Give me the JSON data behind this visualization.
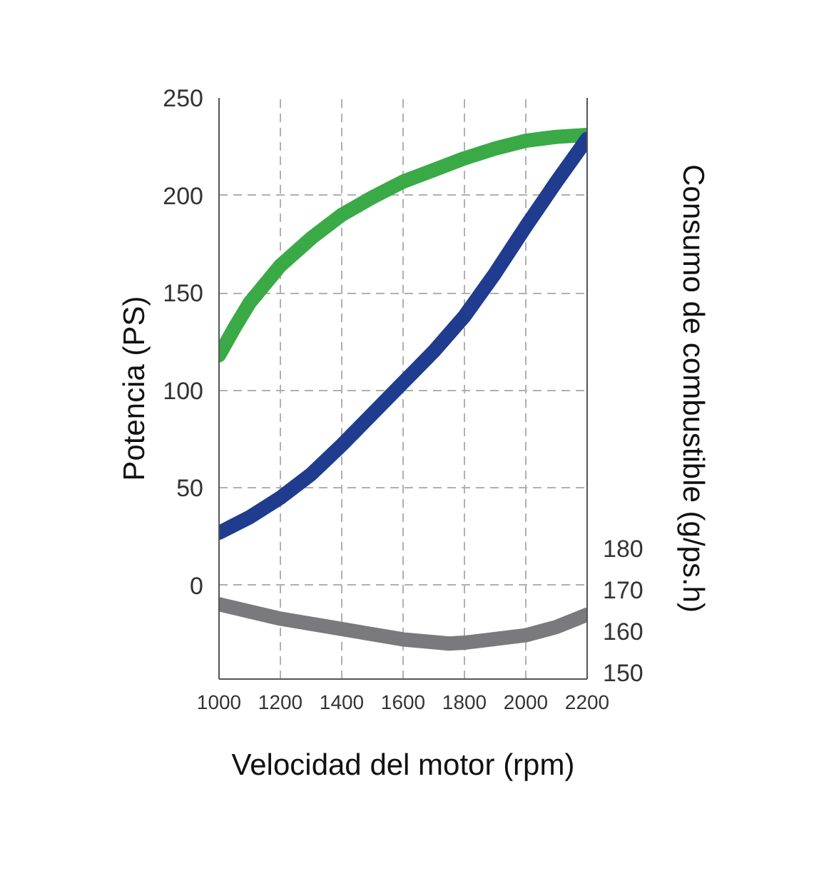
{
  "chart_data": {
    "type": "line",
    "xlabel": "Velocidad del motor (rpm)",
    "ylabel": "Potencia (PS)",
    "y2label": "Consumo de combustible (g/ps.h)",
    "xlim": [
      1000,
      2200
    ],
    "xticks": [
      1000,
      1200,
      1400,
      1600,
      1800,
      2000,
      2200
    ],
    "ylim": [
      -48,
      250
    ],
    "yticks": [
      0,
      50,
      100,
      150,
      200,
      250
    ],
    "y2lim": [
      148.4,
      289
    ],
    "y2ticks": [
      150,
      160,
      170,
      180
    ],
    "grid": true,
    "line_style": "solid",
    "series": [
      {
        "color": "#3aaa47",
        "x": [
          1000,
          1050,
          1100,
          1200,
          1300,
          1400,
          1500,
          1600,
          1700,
          1800,
          1900,
          2000,
          2100,
          2200
        ],
        "values": [
          118,
          132,
          145,
          164,
          178,
          190,
          199,
          207,
          213,
          219,
          224,
          228,
          230,
          231
        ]
      },
      {
        "color": "#1f3c8f",
        "x": [
          1000,
          1100,
          1200,
          1300,
          1400,
          1500,
          1600,
          1700,
          1800,
          1900,
          2000,
          2100,
          2200
        ],
        "values": [
          27,
          35,
          45,
          57,
          72,
          88,
          104,
          120,
          138,
          160,
          184,
          207,
          229
        ]
      },
      {
        "color": "#7a7a7c",
        "axis": "y2",
        "x": [
          1000,
          1200,
          1400,
          1600,
          1750,
          1800,
          2000,
          2100,
          2200
        ],
        "values": [
          166.5,
          163,
          160.5,
          158,
          157,
          157.2,
          159,
          161,
          164
        ]
      }
    ]
  }
}
